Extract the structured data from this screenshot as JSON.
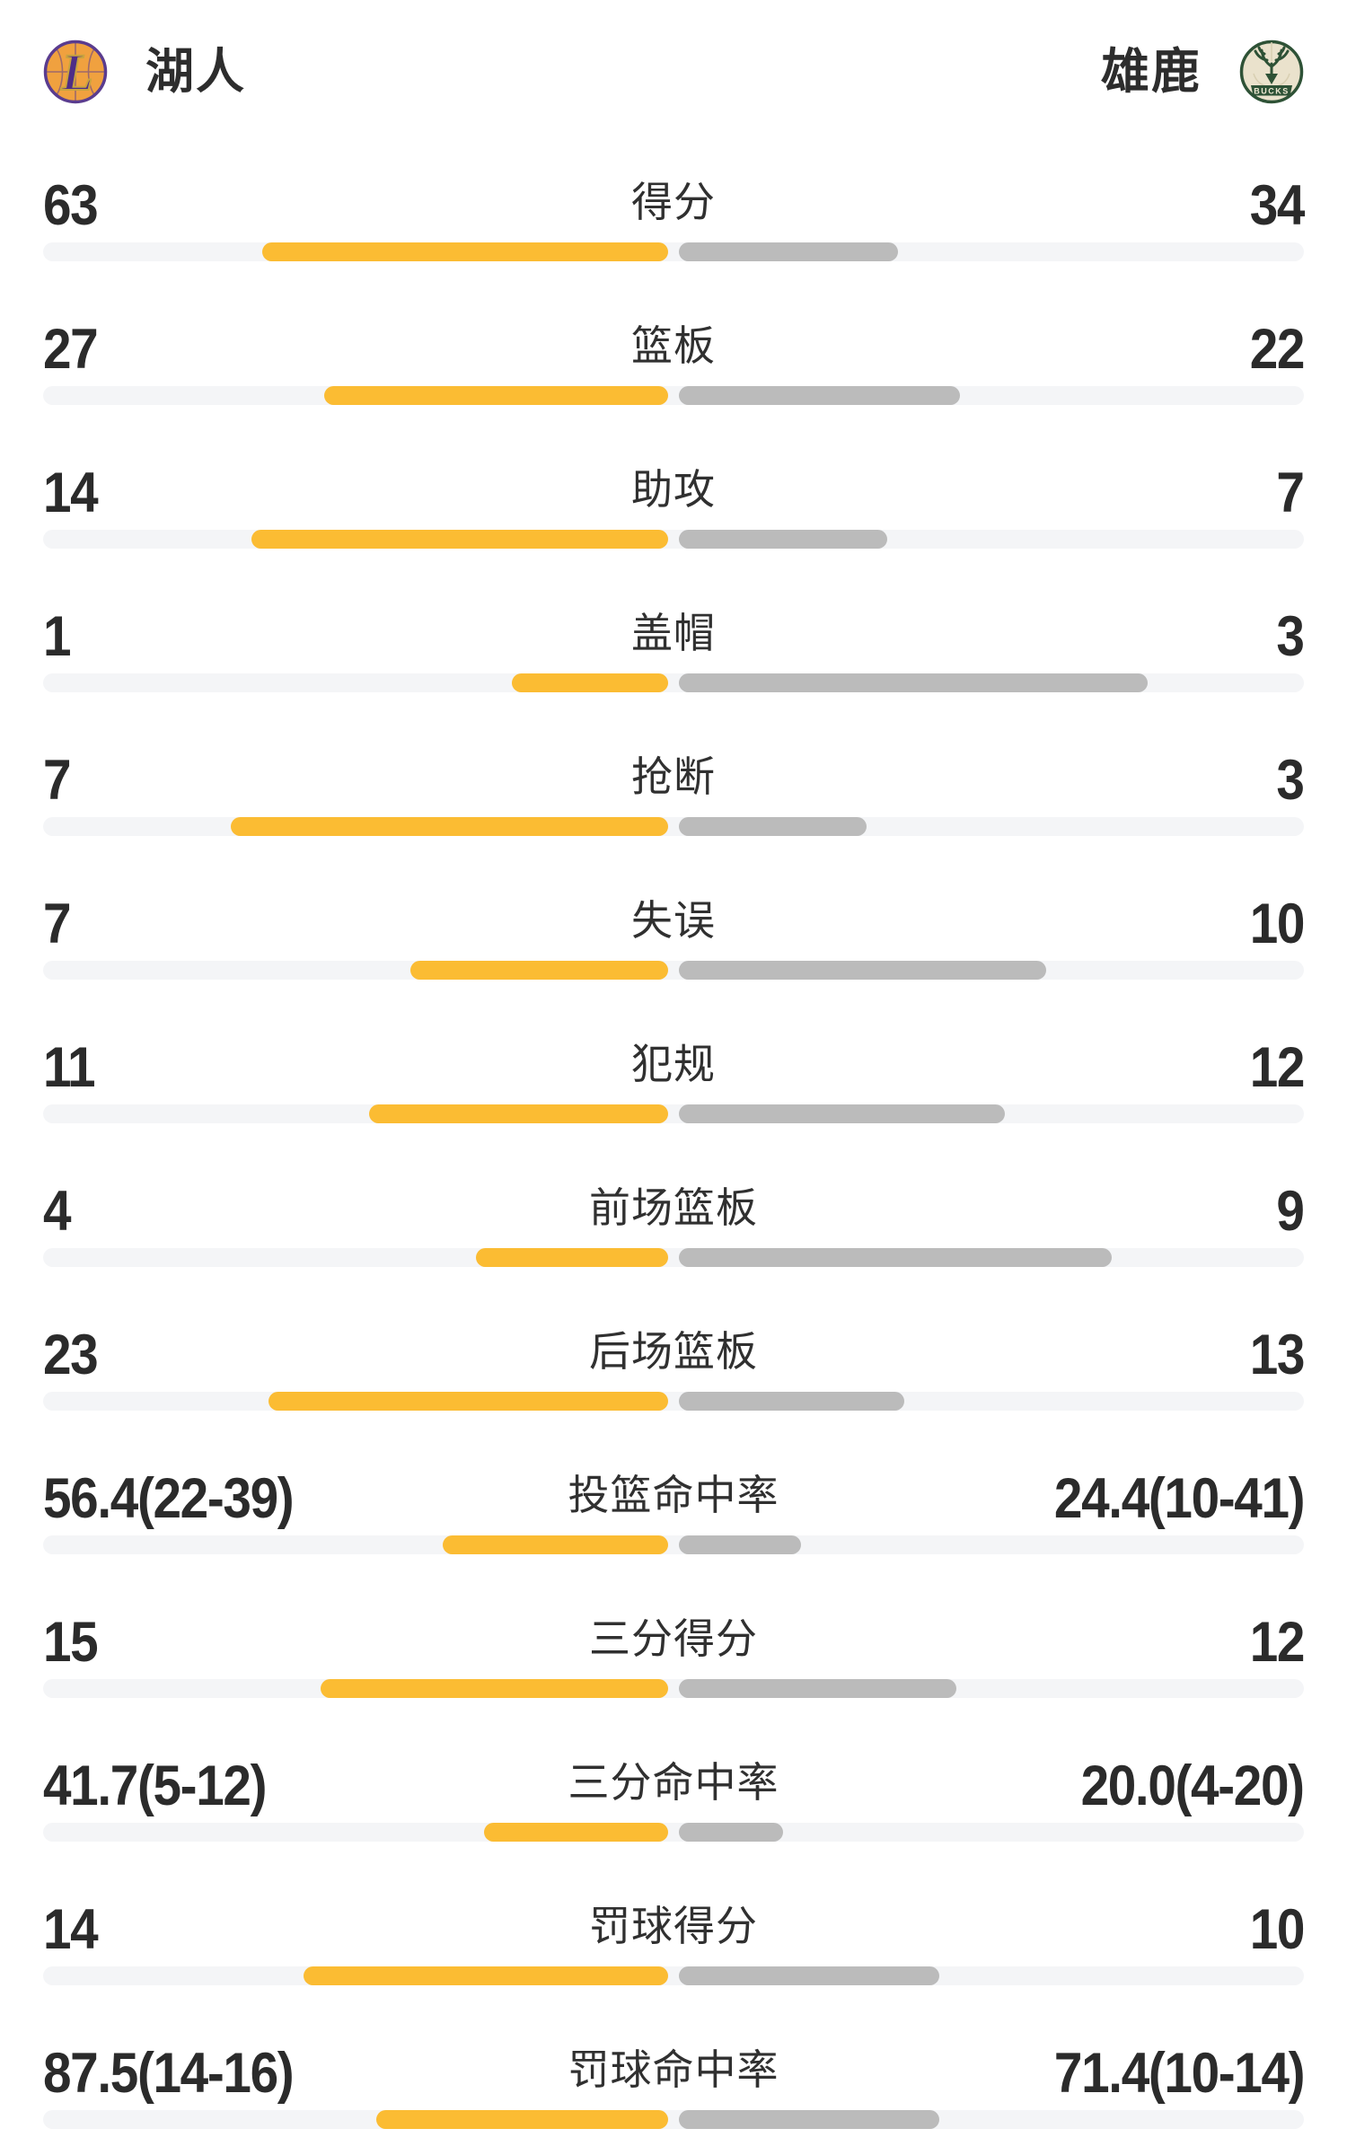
{
  "header": {
    "home": {
      "name": "湖人",
      "logo_letter": "L"
    },
    "away": {
      "name": "雄鹿",
      "logo_text": "BUCKS"
    }
  },
  "colors": {
    "home_bar": "#FBBC33",
    "away_bar": "#BBBBBB",
    "track": "#F4F5F7",
    "value_text": "#2B2B2B",
    "label_text": "#303030",
    "lakers_purple": "#5A3C8F",
    "lakers_gold": "#C9A43E",
    "lakers_orange": "#F0A13F",
    "bucks_green": "#2E5236",
    "bucks_cream": "#EAE2CC"
  },
  "rows": [
    {
      "label": "得分",
      "home": "63",
      "away": "34",
      "home_ratio": 0.6495,
      "away_ratio": 0.3505
    },
    {
      "label": "篮板",
      "home": "27",
      "away": "22",
      "home_ratio": 0.551,
      "away_ratio": 0.449
    },
    {
      "label": "助攻",
      "home": "14",
      "away": "7",
      "home_ratio": 0.6667,
      "away_ratio": 0.3333
    },
    {
      "label": "盖帽",
      "home": "1",
      "away": "3",
      "home_ratio": 0.25,
      "away_ratio": 0.75
    },
    {
      "label": "抢断",
      "home": "7",
      "away": "3",
      "home_ratio": 0.7,
      "away_ratio": 0.3
    },
    {
      "label": "失误",
      "home": "7",
      "away": "10",
      "home_ratio": 0.4118,
      "away_ratio": 0.5882
    },
    {
      "label": "犯规",
      "home": "11",
      "away": "12",
      "home_ratio": 0.4783,
      "away_ratio": 0.5217
    },
    {
      "label": "前场篮板",
      "home": "4",
      "away": "9",
      "home_ratio": 0.3077,
      "away_ratio": 0.6923
    },
    {
      "label": "后场篮板",
      "home": "23",
      "away": "13",
      "home_ratio": 0.6389,
      "away_ratio": 0.3611
    },
    {
      "label": "投篮命中率",
      "home": "56.4(22-39)",
      "away": "24.4(10-41)",
      "home_ratio": 0.3606,
      "away_ratio": 0.1961
    },
    {
      "label": "三分得分",
      "home": "15",
      "away": "12",
      "home_ratio": 0.5556,
      "away_ratio": 0.4444
    },
    {
      "label": "三分命中率",
      "home": "41.7(5-12)",
      "away": "20.0(4-20)",
      "home_ratio": 0.2943,
      "away_ratio": 0.1667
    },
    {
      "label": "罚球得分",
      "home": "14",
      "away": "10",
      "home_ratio": 0.5833,
      "away_ratio": 0.4167
    },
    {
      "label": "罚球命中率",
      "home": "87.5(14-16)",
      "away": "71.4(10-14)",
      "home_ratio": 0.4667,
      "away_ratio": 0.4167
    }
  ]
}
